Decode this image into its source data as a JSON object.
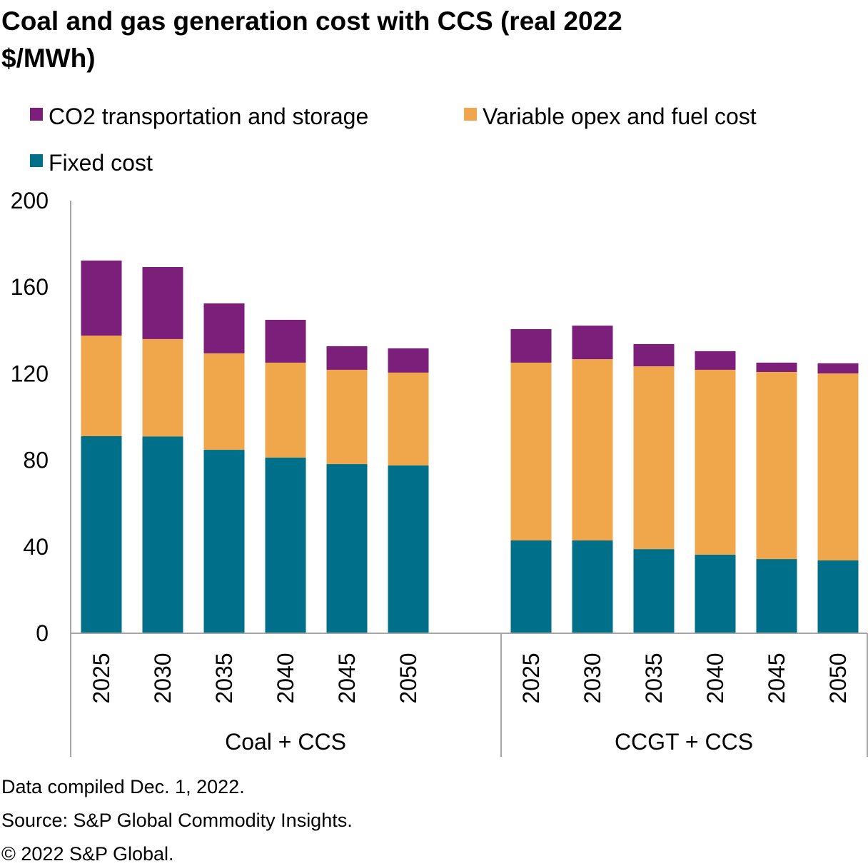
{
  "chart_data": {
    "type": "bar",
    "stacked": true,
    "title_lines": [
      "Coal and gas generation cost with CCS (real 2022",
      "$/MWh)"
    ],
    "groups": [
      {
        "name": "Coal + CCS",
        "categories": [
          "2025",
          "2030",
          "2035",
          "2040",
          "2045",
          "2050"
        ]
      },
      {
        "name": "CCGT + CCS",
        "categories": [
          "2025",
          "2030",
          "2035",
          "2040",
          "2045",
          "2050"
        ]
      }
    ],
    "series": [
      {
        "name": "Fixed cost",
        "color": "#006F8A",
        "values": [
          [
            91.1,
            91.0,
            84.8,
            81.2,
            78.2,
            77.6
          ],
          [
            42.9,
            42.9,
            38.9,
            36.3,
            34.3,
            33.7
          ]
        ]
      },
      {
        "name": "Variable opex and fuel cost",
        "color": "#F0A64B",
        "values": [
          [
            46.5,
            45.0,
            44.6,
            43.9,
            43.6,
            42.9
          ],
          [
            82.2,
            83.8,
            84.5,
            85.5,
            86.5,
            86.4
          ]
        ]
      },
      {
        "name": "CO2 transportation and storage",
        "color": "#7B1F7B",
        "values": [
          [
            34.7,
            33.3,
            23.1,
            19.8,
            10.9,
            11.2
          ],
          [
            15.5,
            15.5,
            10.3,
            8.6,
            4.3,
            4.7
          ]
        ]
      }
    ],
    "legend_order": [
      "CO2 transportation and storage",
      "Variable opex and fuel cost",
      "Fixed cost"
    ],
    "legend_placement": "top",
    "ylim": [
      0,
      200
    ],
    "yticks": [
      0,
      40,
      80,
      120,
      160,
      200
    ],
    "grid": false
  },
  "footnotes": [
    "Data compiled Dec. 1, 2022.",
    "Source: S&P Global Commodity Insights.",
    "© 2022 S&P Global."
  ]
}
